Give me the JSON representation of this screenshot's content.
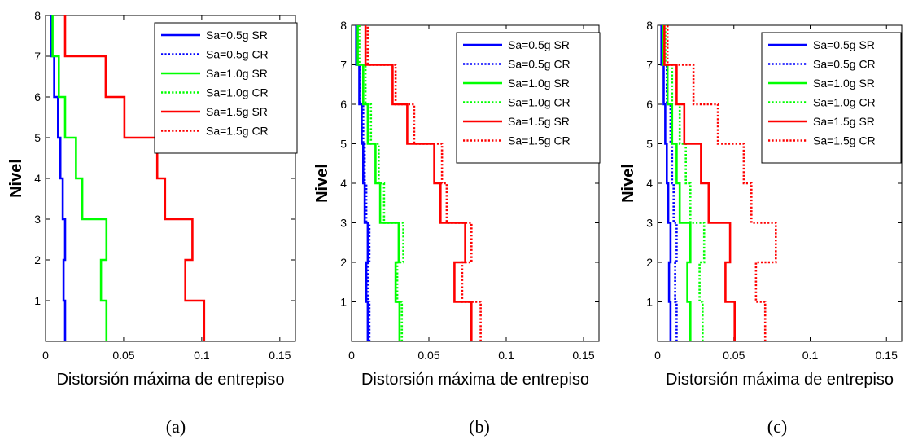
{
  "colors": {
    "blue": "#0000ff",
    "green": "#00ff00",
    "red": "#ff0000"
  },
  "chart_data": [
    {
      "type": "line",
      "panel_label": "(a)",
      "xlabel": "Distorsión máxima de entrepiso",
      "ylabel": "Nivel",
      "xlim": [
        0,
        0.16
      ],
      "ylim": [
        0,
        8
      ],
      "xticks": [
        0,
        0.05,
        0.1,
        0.15
      ],
      "xtick_labels": [
        "0",
        "0.05",
        "0.1",
        "0.15"
      ],
      "yticks": [
        1,
        2,
        3,
        4,
        5,
        6,
        7,
        8
      ],
      "ytick_labels": [
        "1",
        "2",
        "3",
        "4",
        "5",
        "6",
        "7",
        "8"
      ],
      "grid": false,
      "legend_position": "top-right",
      "series": [
        {
          "name": "Sa=0.5g SR",
          "color": "#0000ff",
          "style": "solid",
          "values": [
            0.0125,
            0.0115,
            0.0125,
            0.011,
            0.0095,
            0.008,
            0.0055,
            0.0035
          ]
        },
        {
          "name": "Sa=1.0g SR",
          "color": "#00ff00",
          "style": "solid",
          "values": [
            0.039,
            0.0355,
            0.039,
            0.0235,
            0.0195,
            0.0125,
            0.0085,
            0.0045
          ]
        },
        {
          "name": "Sa=1.5g SR",
          "color": "#ff0000",
          "style": "solid",
          "values": [
            0.1015,
            0.0895,
            0.094,
            0.0765,
            0.0715,
            0.0505,
            0.0385,
            0.0125
          ]
        },
        {
          "name": "Sa=0.5g CR",
          "color": "#0000ff",
          "style": "dotted",
          "values": []
        },
        {
          "name": "Sa=1.0g CR",
          "color": "#00ff00",
          "style": "dotted",
          "values": []
        },
        {
          "name": "Sa=1.5g CR",
          "color": "#ff0000",
          "style": "dotted",
          "values": []
        }
      ]
    },
    {
      "type": "line",
      "panel_label": "(b)",
      "xlabel": "Distorsión máxima de entrepiso",
      "ylabel": "Nivel",
      "xlim": [
        0,
        0.16
      ],
      "ylim": [
        0,
        8
      ],
      "xticks": [
        0,
        0.05,
        0.1,
        0.15
      ],
      "xtick_labels": [
        "0",
        "0.05",
        "0.1",
        "0.15"
      ],
      "yticks": [
        1,
        2,
        3,
        4,
        5,
        6,
        7,
        8
      ],
      "ytick_labels": [
        "1",
        "2",
        "3",
        "4",
        "5",
        "6",
        "7",
        "8"
      ],
      "grid": false,
      "legend_position": "top-right",
      "series": [
        {
          "name": "Sa=0.5g SR",
          "color": "#0000ff",
          "style": "solid",
          "values": [
            0.0105,
            0.0095,
            0.0105,
            0.0085,
            0.0075,
            0.0065,
            0.005,
            0.003
          ]
        },
        {
          "name": "Sa=0.5g CR",
          "color": "#0000ff",
          "style": "dotted",
          "values": [
            0.0115,
            0.0105,
            0.0115,
            0.0095,
            0.0085,
            0.0075,
            0.0055,
            0.0035
          ]
        },
        {
          "name": "Sa=1.0g SR",
          "color": "#00ff00",
          "style": "solid",
          "values": [
            0.031,
            0.0285,
            0.0305,
            0.0185,
            0.0155,
            0.0105,
            0.0075,
            0.004
          ]
        },
        {
          "name": "Sa=1.0g CR",
          "color": "#00ff00",
          "style": "dotted",
          "values": [
            0.0325,
            0.0295,
            0.0335,
            0.021,
            0.0175,
            0.0125,
            0.009,
            0.005
          ]
        },
        {
          "name": "Sa=1.5g SR",
          "color": "#ff0000",
          "style": "solid",
          "values": [
            0.0775,
            0.0665,
            0.0735,
            0.0575,
            0.0535,
            0.036,
            0.0265,
            0.009
          ]
        },
        {
          "name": "Sa=1.5g CR",
          "color": "#ff0000",
          "style": "dotted",
          "values": [
            0.0835,
            0.0715,
            0.0775,
            0.0615,
            0.0585,
            0.0405,
            0.0285,
            0.0105
          ]
        }
      ]
    },
    {
      "type": "line",
      "panel_label": "(c)",
      "xlabel": "Distorsión máxima de entrepiso",
      "ylabel": "Nivel",
      "xlim": [
        0,
        0.16
      ],
      "ylim": [
        0,
        8
      ],
      "xticks": [
        0,
        0.05,
        0.1,
        0.15
      ],
      "xtick_labels": [
        "0",
        "0.05",
        "0.1",
        "0.15"
      ],
      "yticks": [
        1,
        2,
        3,
        4,
        5,
        6,
        7,
        8
      ],
      "ytick_labels": [
        "1",
        "2",
        "3",
        "4",
        "5",
        "6",
        "7",
        "8"
      ],
      "grid": false,
      "legend_position": "top-right",
      "series": [
        {
          "name": "Sa=0.5g SR",
          "color": "#0000ff",
          "style": "solid",
          "values": [
            0.0085,
            0.0075,
            0.0085,
            0.007,
            0.006,
            0.005,
            0.004,
            0.0025
          ]
        },
        {
          "name": "Sa=0.5g CR",
          "color": "#0000ff",
          "style": "dotted",
          "values": [
            0.0125,
            0.0115,
            0.0125,
            0.0105,
            0.0095,
            0.0085,
            0.006,
            0.0035
          ]
        },
        {
          "name": "Sa=1.0g SR",
          "color": "#00ff00",
          "style": "solid",
          "values": [
            0.0215,
            0.0195,
            0.0215,
            0.0145,
            0.0125,
            0.0095,
            0.0065,
            0.0035
          ]
        },
        {
          "name": "Sa=1.0g CR",
          "color": "#00ff00",
          "style": "dotted",
          "values": [
            0.0295,
            0.0275,
            0.0305,
            0.0215,
            0.0185,
            0.0145,
            0.0095,
            0.005
          ]
        },
        {
          "name": "Sa=1.5g SR",
          "color": "#ff0000",
          "style": "solid",
          "values": [
            0.0505,
            0.0445,
            0.0475,
            0.0335,
            0.0285,
            0.0175,
            0.0125,
            0.0045
          ]
        },
        {
          "name": "Sa=1.5g CR",
          "color": "#ff0000",
          "style": "dotted",
          "values": [
            0.0705,
            0.0645,
            0.0775,
            0.0615,
            0.0565,
            0.0395,
            0.0235,
            0.0065
          ]
        }
      ]
    }
  ]
}
